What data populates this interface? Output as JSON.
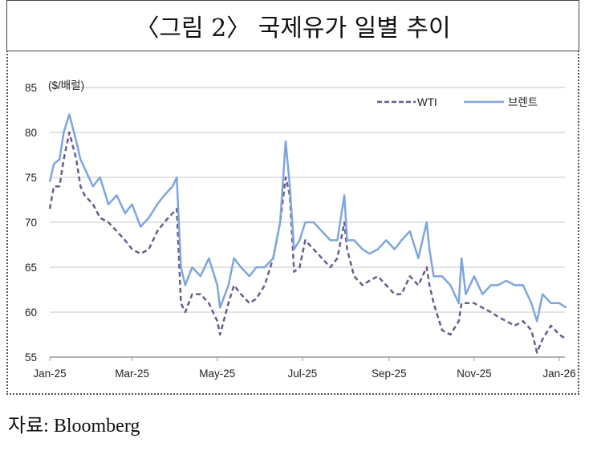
{
  "title": "〈그림 2〉 국제유가 일별 추이",
  "source": "자료: Bloomberg",
  "chart_data": {
    "type": "line",
    "title": "〈그림 2〉 국제유가 일별 추이",
    "ylabel": "($/배럴)",
    "xlabel": "",
    "ylim": [
      55,
      85
    ],
    "yticks": [
      55,
      60,
      65,
      70,
      75,
      80,
      85
    ],
    "xticks": [
      {
        "day": 0,
        "label": "Jan-25"
      },
      {
        "day": 59,
        "label": "Mar-25"
      },
      {
        "day": 120,
        "label": "May-25"
      },
      {
        "day": 181,
        "label": "Jul-25"
      },
      {
        "day": 243,
        "label": "Sep-25"
      },
      {
        "day": 304,
        "label": "Nov-25"
      },
      {
        "day": 365,
        "label": "Jan-26"
      }
    ],
    "grid": true,
    "legend_position": "top-right",
    "x_days_since_2025_01_01": [
      0,
      3,
      7,
      10,
      14,
      19,
      22,
      25,
      31,
      36,
      42,
      48,
      54,
      59,
      65,
      71,
      77,
      82,
      88,
      91,
      94,
      97,
      102,
      108,
      114,
      120,
      122,
      128,
      132,
      137,
      143,
      148,
      154,
      160,
      165,
      169,
      172,
      175,
      179,
      183,
      189,
      195,
      201,
      206,
      211,
      213,
      218,
      224,
      229,
      235,
      241,
      247,
      252,
      258,
      264,
      270,
      272,
      275,
      281,
      287,
      293,
      295,
      298,
      304,
      310,
      316,
      321,
      327,
      333,
      339,
      345,
      349,
      353,
      359,
      365,
      370
    ],
    "series": [
      {
        "name": "WTI",
        "color": "#6b5b8c",
        "style": "dashed",
        "values": [
          71.5,
          74,
          74,
          77,
          80,
          77,
          74,
          73,
          72,
          70.5,
          70,
          69,
          68,
          67,
          66.5,
          67,
          69,
          70,
          71,
          71.5,
          61,
          60,
          62,
          62,
          61,
          59,
          57.5,
          61,
          63,
          62,
          61,
          61.5,
          63,
          66,
          70,
          75,
          73,
          64.5,
          65,
          68,
          67,
          66,
          65,
          66,
          70,
          67,
          64,
          63,
          63.5,
          64,
          63,
          62,
          62,
          64,
          63,
          65,
          63,
          61,
          58,
          57.5,
          59,
          61,
          61,
          61,
          60.5,
          60,
          59.5,
          59,
          58.5,
          59,
          58,
          55.5,
          57,
          58.5,
          57.5,
          57
        ]
      },
      {
        "name": "브렌트",
        "color": "#7ea6dc",
        "style": "solid",
        "values": [
          74.5,
          76.5,
          77,
          80,
          82,
          79,
          77,
          76,
          74,
          75,
          72,
          73,
          71,
          72,
          69.5,
          70.5,
          72,
          73,
          74,
          75,
          65,
          63,
          65,
          64,
          66,
          63,
          60.5,
          63,
          66,
          65,
          64,
          65,
          65,
          66,
          70,
          79,
          74,
          67,
          68,
          70,
          70,
          69,
          68,
          68,
          73,
          68,
          68,
          67,
          66.5,
          67,
          68,
          67,
          68,
          69,
          66,
          70,
          67,
          64,
          64,
          63,
          61,
          66,
          62,
          64,
          62,
          63,
          63,
          63.5,
          63,
          63,
          61,
          59,
          62,
          61,
          61,
          60.5
        ]
      }
    ]
  }
}
